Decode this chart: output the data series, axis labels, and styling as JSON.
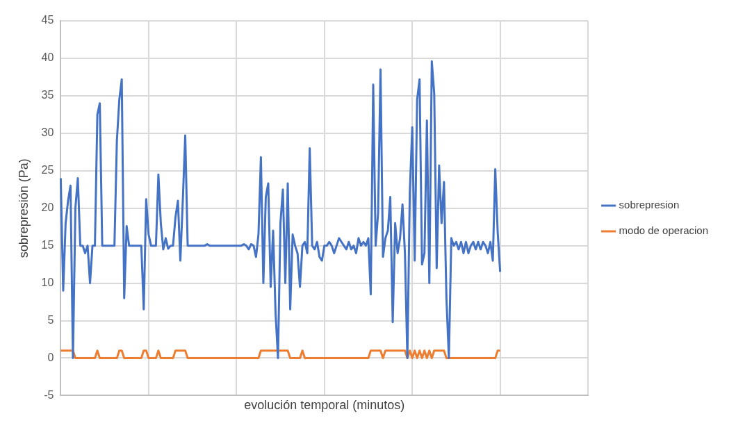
{
  "chart_data": {
    "type": "line",
    "xlabel": "evolución temporal (minutos)",
    "ylabel": "sobrepresión (Pa)",
    "categories": [
      null,
      null,
      null,
      null,
      null,
      null,
      null,
      null,
      null,
      null,
      null,
      null,
      null,
      null,
      null,
      null,
      null,
      null,
      null,
      null,
      null,
      null,
      null,
      null,
      null,
      null,
      null,
      null,
      null,
      null,
      null,
      null,
      null,
      null,
      null,
      null,
      null,
      null,
      null,
      null,
      null,
      null,
      null,
      null,
      null,
      null,
      null,
      null,
      null,
      null,
      null,
      null,
      null,
      null,
      null,
      null,
      null,
      null,
      null,
      null,
      null,
      null,
      null,
      null,
      null,
      null,
      null,
      null,
      null,
      null,
      null,
      null,
      null,
      null,
      null,
      null,
      null,
      null,
      null,
      null,
      null,
      null,
      null,
      null,
      null,
      null,
      null,
      null,
      null,
      null,
      null,
      null,
      null,
      null,
      null,
      null,
      null,
      null,
      null,
      null,
      null,
      null,
      null,
      null,
      null,
      null,
      null,
      null,
      null,
      null,
      null,
      null,
      null,
      null,
      null,
      null,
      null,
      null,
      null,
      null,
      null,
      null,
      null,
      null,
      null,
      null,
      null,
      null,
      null,
      null,
      null,
      null,
      null,
      null,
      null,
      null,
      null,
      null,
      null,
      null,
      null,
      null,
      null,
      null,
      null,
      null,
      null,
      null,
      null,
      null,
      null,
      null,
      null,
      null,
      null,
      null,
      null,
      null,
      null,
      null,
      null,
      null,
      null,
      null,
      null,
      null,
      null,
      null,
      null,
      null,
      null,
      null,
      null,
      null,
      null,
      null,
      null,
      null,
      null,
      null,
      null,
      null,
      null,
      null,
      null,
      null,
      null,
      null,
      null,
      null,
      null,
      null,
      null,
      null,
      null,
      null,
      null,
      null,
      null,
      null,
      null,
      null,
      null,
      null,
      null,
      null,
      null,
      null,
      null,
      null,
      null,
      null,
      null,
      null,
      null,
      null,
      null
    ],
    "ylim": [
      -5,
      45
    ],
    "yticks": [
      -5,
      0,
      5,
      10,
      15,
      20,
      25,
      30,
      35,
      40,
      45
    ],
    "tick_labels": "y",
    "grid": true,
    "legend": "right",
    "marker": "none",
    "line_style": "solid",
    "series": [
      {
        "name": "sobrepresion",
        "color": "#4472c4",
        "values": [
          24,
          9,
          18,
          21,
          23,
          0,
          20,
          24,
          15,
          15,
          14,
          15,
          10,
          15,
          15,
          32.5,
          34,
          15,
          15,
          15,
          15,
          15,
          15,
          29,
          34.5,
          37.2,
          8,
          17.6,
          15,
          15,
          15,
          15,
          15,
          15,
          6.5,
          21.2,
          16.5,
          15,
          15,
          15,
          24.5,
          18,
          14.5,
          16,
          14.6,
          15,
          15,
          18.8,
          21,
          13,
          21,
          29.7,
          15,
          15,
          15,
          15,
          15,
          15,
          15,
          15,
          15.2,
          15,
          15,
          15,
          15,
          15,
          15,
          15,
          15,
          15,
          15,
          15,
          15,
          15,
          15,
          15.2,
          15,
          14.5,
          15.2,
          15,
          13.5,
          16.5,
          26.8,
          10,
          21.5,
          23.3,
          9.5,
          17,
          6,
          0,
          18,
          22.5,
          10,
          23.3,
          6.5,
          16.5,
          15,
          14,
          9.5,
          15,
          15.5,
          14,
          28,
          15,
          14.5,
          15.5,
          13.5,
          13,
          15,
          15,
          15.5,
          15,
          14,
          15,
          16,
          15.5,
          15,
          14.5,
          15.5,
          14.5,
          15,
          14,
          16,
          15,
          15.5,
          15,
          16,
          8.5,
          36.5,
          15,
          19.3,
          38.5,
          13.5,
          16,
          17,
          21.5,
          4.8,
          18,
          14,
          16,
          20.5,
          14,
          0,
          22.2,
          30.8,
          13,
          34.5,
          37.2,
          12.5,
          14,
          31.7,
          10,
          39.6,
          35.3,
          12,
          25.7,
          18,
          23.5,
          8,
          0,
          16,
          15,
          15.5,
          14.5,
          15.5,
          14,
          15.5,
          14,
          15,
          15.5,
          14.5,
          15.5,
          14.5,
          15.5,
          15,
          14,
          15.5,
          13,
          25.2,
          16.8,
          11.5,
          null,
          null,
          null,
          null,
          null,
          null,
          null,
          null,
          null,
          null,
          null,
          null,
          null,
          null,
          null,
          null,
          null,
          null,
          null,
          null,
          null,
          null,
          null,
          null,
          null,
          null,
          null,
          null,
          null,
          null,
          null,
          null,
          null,
          null,
          null,
          null
        ]
      },
      {
        "name": "modo de operacion",
        "color": "#ed7d31",
        "values": [
          1,
          1,
          1,
          1,
          1,
          1,
          0,
          0,
          0,
          0,
          0,
          0,
          0,
          0,
          0,
          1,
          0,
          0,
          0,
          0,
          0,
          0,
          0,
          0,
          1,
          1,
          0,
          0,
          0,
          0,
          0,
          0,
          0,
          0,
          1,
          1,
          0,
          0,
          0,
          0,
          1,
          0,
          0,
          0,
          0,
          0,
          0,
          1,
          1,
          1,
          1,
          1,
          0,
          0,
          0,
          0,
          0,
          0,
          0,
          0,
          0,
          0,
          0,
          0,
          0,
          0,
          0,
          0,
          0,
          0,
          0,
          0,
          0,
          0,
          0,
          0,
          0,
          0,
          0,
          0,
          0,
          0,
          1,
          1,
          1,
          1,
          1,
          1,
          1,
          1,
          1,
          1,
          1,
          1,
          0,
          0,
          0,
          0,
          0,
          1,
          0,
          0,
          0,
          0,
          0,
          0,
          0,
          0,
          0,
          0,
          0,
          0,
          0,
          0,
          0,
          0,
          0,
          0,
          0,
          0,
          0,
          0,
          0,
          0,
          0,
          0,
          0,
          1,
          1,
          1,
          1,
          1,
          0,
          1,
          1,
          1,
          1,
          1,
          1,
          1,
          1,
          1,
          0,
          1,
          0,
          1,
          0,
          1,
          0,
          1,
          0,
          1,
          0,
          1,
          1,
          1,
          1,
          1,
          0,
          0,
          0,
          0,
          0,
          0,
          0,
          0,
          0,
          0,
          0,
          0,
          0,
          0,
          0,
          0,
          0,
          0,
          0,
          0,
          0,
          1,
          1,
          null,
          null,
          null,
          null,
          null,
          null,
          null,
          null,
          null,
          null,
          null,
          null,
          null,
          null,
          null,
          null,
          null,
          null,
          null,
          null,
          null,
          null,
          null,
          null,
          null,
          null,
          null,
          null,
          null,
          null,
          null,
          null,
          null,
          null,
          null,
          null
        ]
      }
    ]
  }
}
